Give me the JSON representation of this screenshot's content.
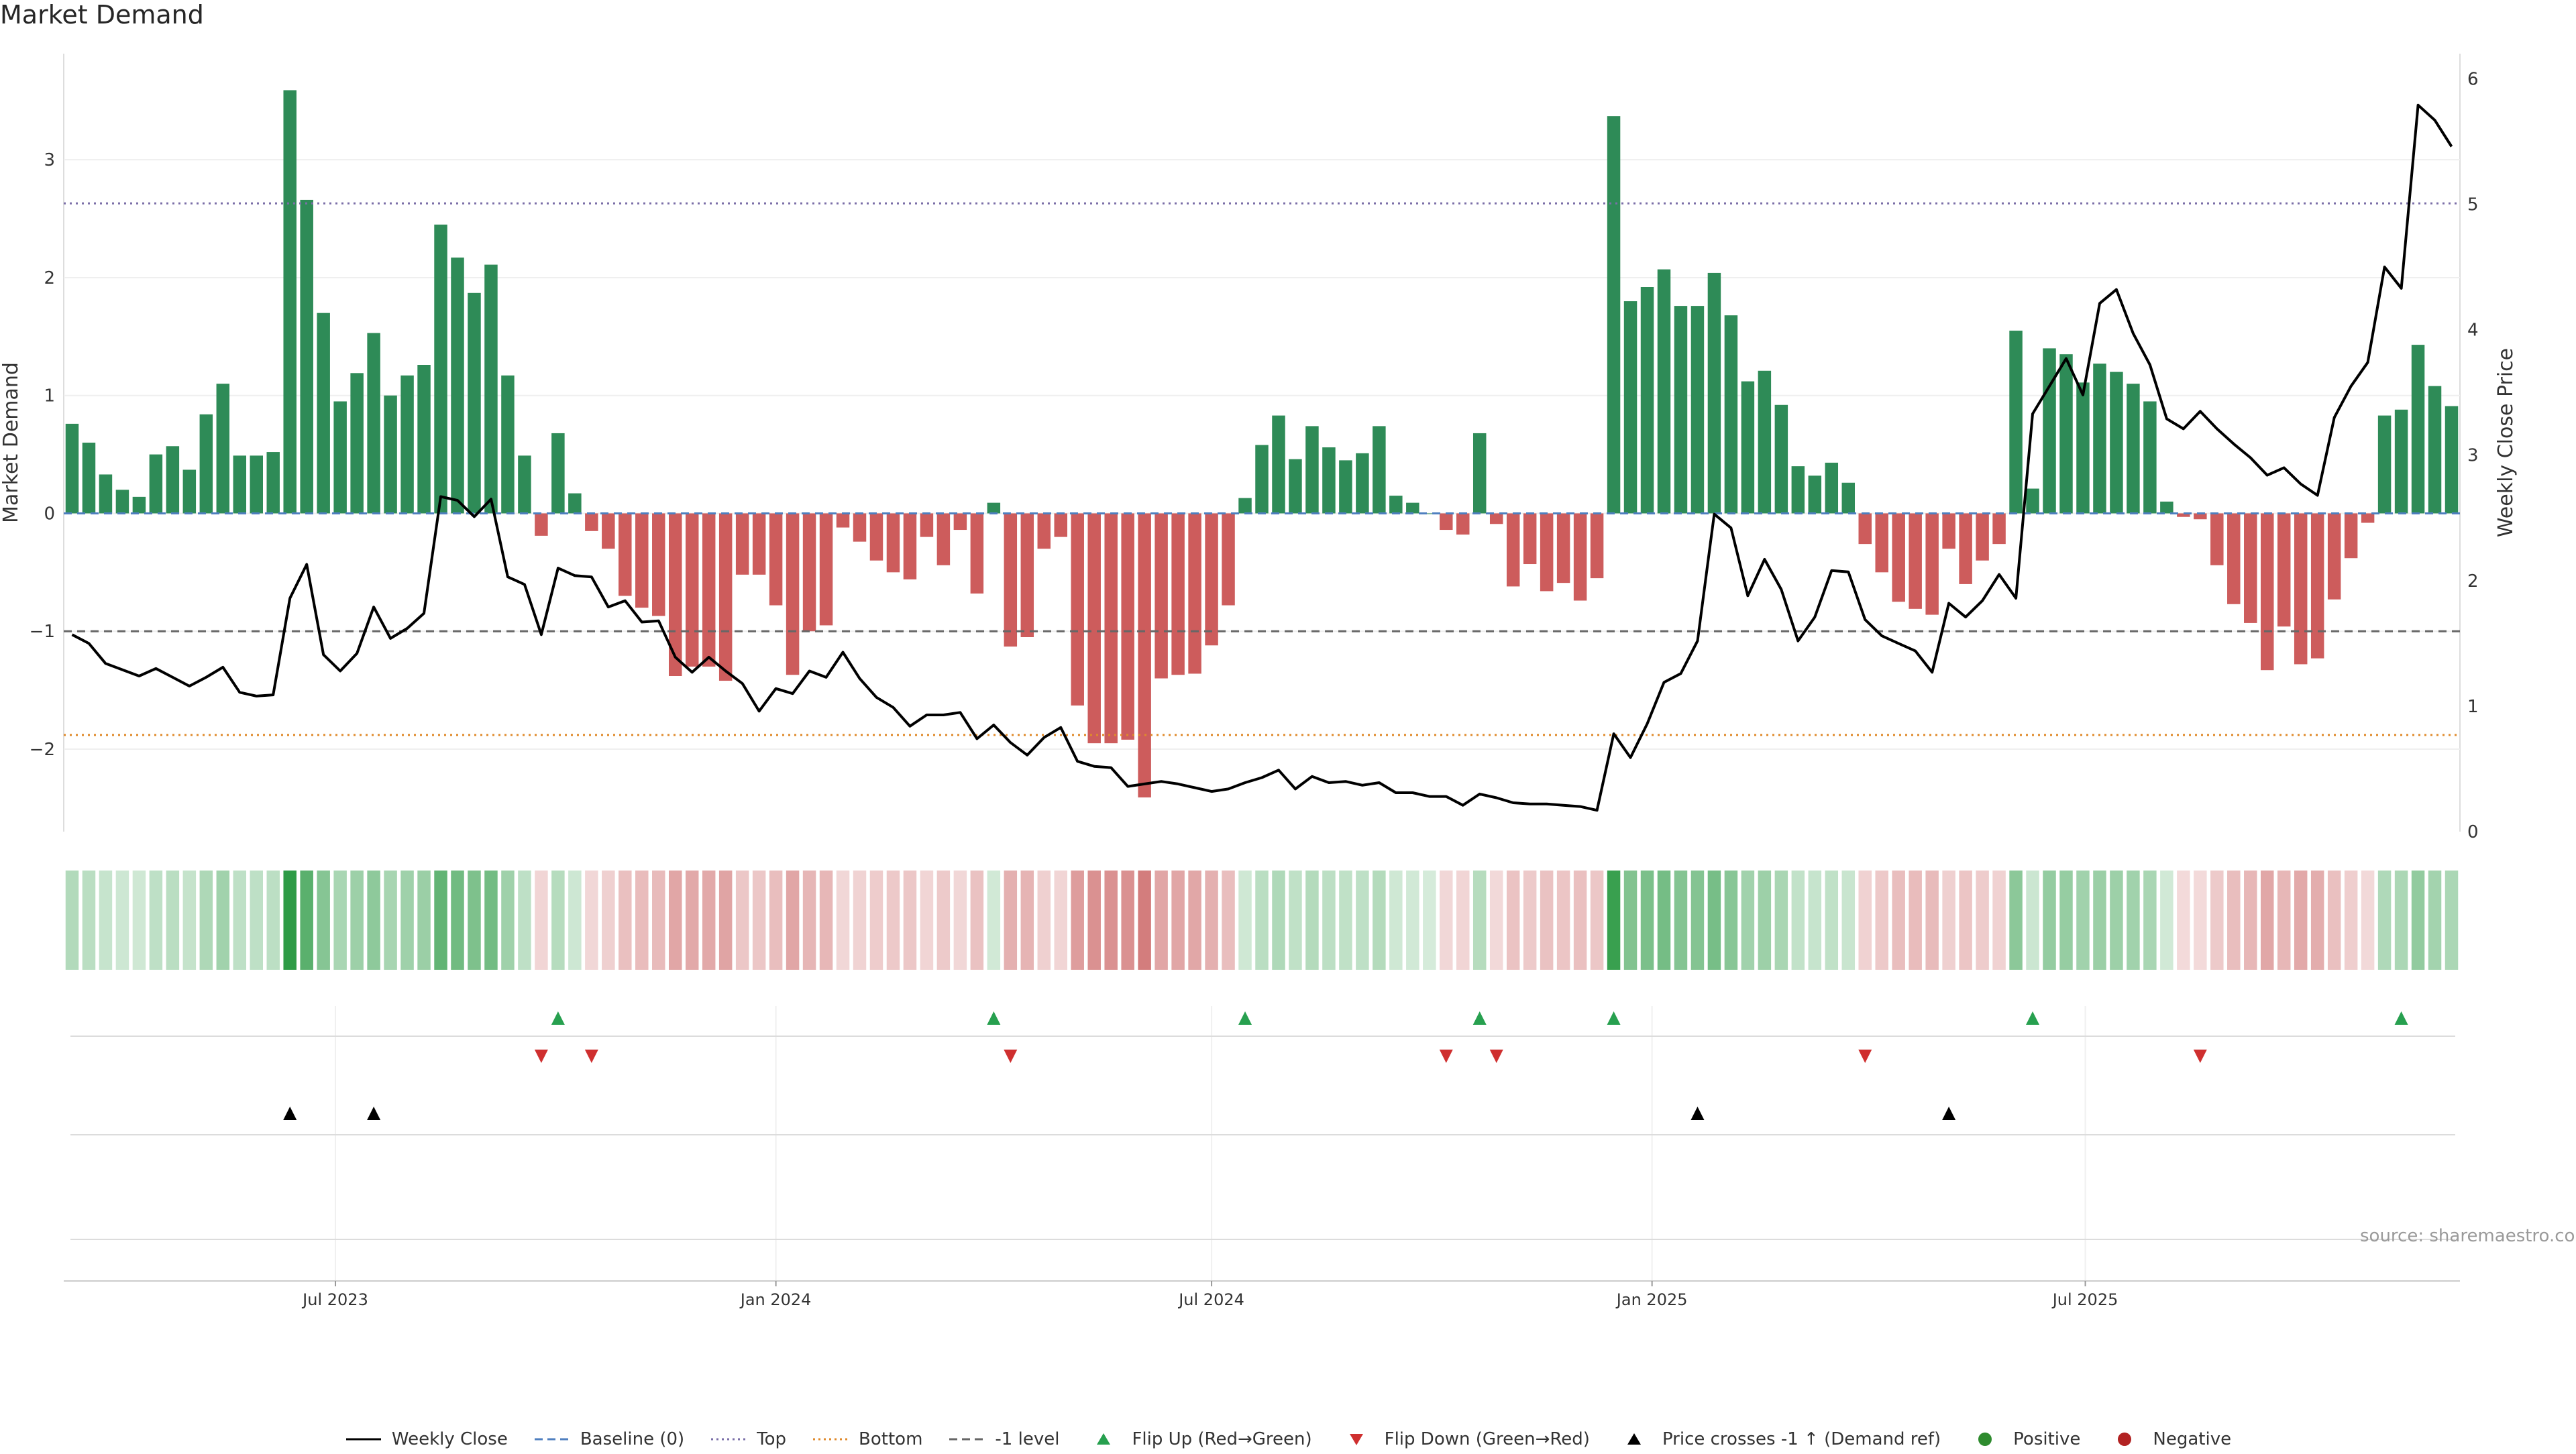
{
  "title": "Market Demand",
  "source": "source: sharemaestro.com",
  "chart_data": {
    "type": "bar",
    "title": "Market Demand",
    "ylabel_left": "Market Demand",
    "ylabel_right": "Weekly Close Price",
    "ylim_left": [
      -2.7,
      3.9
    ],
    "ylim_right": [
      0,
      6.2
    ],
    "yticks_left": [
      -2,
      -1,
      0,
      1,
      2,
      3
    ],
    "yticks_left_labels": [
      "−2",
      "−1",
      "0",
      "1",
      "2",
      "3"
    ],
    "yticks_right": [
      0,
      1,
      2,
      3,
      4,
      5,
      6
    ],
    "x_start_date": "2023-03-13",
    "x_step_days": 7,
    "x_ticks": [
      {
        "label": "Jul 2023",
        "date": "2023-07-01"
      },
      {
        "label": "Jan 2024",
        "date": "2024-01-01"
      },
      {
        "label": "Jul 2024",
        "date": "2024-07-01"
      },
      {
        "label": "Jan 2025",
        "date": "2025-01-01"
      },
      {
        "label": "Jul 2025",
        "date": "2025-07-01"
      }
    ],
    "reference_lines": [
      {
        "name": "Top",
        "value": 2.63,
        "color": "#7b6fa8",
        "style": "dotted"
      },
      {
        "name": "Bottom",
        "value": -1.88,
        "color": "#e08a2b",
        "style": "dotted"
      },
      {
        "name": "-1 level",
        "value": -1.0,
        "color": "#666666",
        "style": "dashed"
      },
      {
        "name": "Baseline (0)",
        "value": 0,
        "color": "#4f7fbf",
        "style": "dashed"
      }
    ],
    "demand": [
      0.76,
      0.6,
      0.33,
      0.2,
      0.14,
      0.5,
      0.57,
      0.37,
      0.84,
      1.1,
      0.49,
      0.49,
      0.52,
      3.59,
      2.66,
      1.7,
      0.95,
      1.19,
      1.53,
      1.0,
      1.17,
      1.26,
      2.45,
      2.17,
      1.87,
      2.11,
      1.17,
      0.49,
      -0.19,
      0.68,
      0.17,
      -0.15,
      -0.3,
      -0.7,
      -0.8,
      -0.87,
      -1.38,
      -1.3,
      -1.3,
      -1.42,
      -0.52,
      -0.52,
      -0.78,
      -1.37,
      -1.0,
      -0.95,
      -0.12,
      -0.24,
      -0.4,
      -0.5,
      -0.56,
      -0.2,
      -0.44,
      -0.14,
      -0.68,
      0.09,
      -1.13,
      -1.05,
      -0.3,
      -0.2,
      -1.63,
      -1.95,
      -1.95,
      -1.92,
      -2.41,
      -1.4,
      -1.37,
      -1.36,
      -1.12,
      -0.78,
      0.13,
      0.58,
      0.83,
      0.46,
      0.74,
      0.56,
      0.45,
      0.51,
      0.74,
      0.15,
      0.09,
      0.0,
      -0.14,
      -0.18,
      0.68,
      -0.09,
      -0.62,
      -0.43,
      -0.66,
      -0.59,
      -0.74,
      -0.55,
      3.37,
      1.8,
      1.92,
      2.07,
      1.76,
      1.76,
      2.04,
      1.68,
      1.12,
      1.21,
      0.92,
      0.4,
      0.32,
      0.43,
      0.26,
      -0.26,
      -0.5,
      -0.75,
      -0.81,
      -0.86,
      -0.3,
      -0.6,
      -0.4,
      -0.26,
      1.55,
      0.21,
      1.4,
      1.35,
      1.11,
      1.27,
      1.2,
      1.1,
      0.95,
      0.1,
      -0.03,
      -0.05,
      -0.44,
      -0.77,
      -0.93,
      -1.33,
      -0.96,
      -1.28,
      -1.23,
      -0.73,
      -0.38,
      -0.08,
      0.83,
      0.88,
      1.43,
      1.08,
      0.91
    ],
    "weekly_close": [
      1.57,
      1.5,
      1.34,
      1.29,
      1.24,
      1.3,
      1.23,
      1.16,
      1.23,
      1.31,
      1.11,
      1.08,
      1.09,
      1.86,
      2.13,
      1.41,
      1.28,
      1.42,
      1.79,
      1.54,
      1.62,
      1.74,
      2.67,
      2.64,
      2.51,
      2.65,
      2.03,
      1.97,
      1.57,
      2.1,
      2.04,
      2.03,
      1.79,
      1.84,
      1.67,
      1.68,
      1.39,
      1.27,
      1.39,
      1.28,
      1.18,
      0.96,
      1.14,
      1.1,
      1.28,
      1.23,
      1.43,
      1.22,
      1.07,
      0.99,
      0.84,
      0.93,
      0.93,
      0.95,
      0.74,
      0.85,
      0.71,
      0.61,
      0.75,
      0.83,
      0.56,
      0.52,
      0.51,
      0.36,
      0.38,
      0.4,
      0.38,
      0.35,
      0.32,
      0.34,
      0.39,
      0.43,
      0.49,
      0.34,
      0.44,
      0.39,
      0.4,
      0.37,
      0.39,
      0.31,
      0.31,
      0.28,
      0.28,
      0.21,
      0.3,
      0.27,
      0.23,
      0.22,
      0.22,
      0.21,
      0.2,
      0.17,
      0.78,
      0.59,
      0.86,
      1.19,
      1.26,
      1.52,
      2.53,
      2.42,
      1.88,
      2.17,
      1.93,
      1.52,
      1.71,
      2.08,
      2.07,
      1.69,
      1.56,
      1.5,
      1.44,
      1.27,
      1.82,
      1.71,
      1.84,
      2.05,
      1.86,
      3.33,
      3.55,
      3.77,
      3.48,
      4.21,
      4.32,
      3.97,
      3.72,
      3.29,
      3.21,
      3.35,
      3.21,
      3.09,
      2.98,
      2.84,
      2.9,
      2.77,
      2.68,
      3.3,
      3.55,
      3.74,
      4.5,
      4.33,
      5.79,
      5.67,
      5.46
    ],
    "flip_up_indices": [
      29,
      55,
      70,
      84,
      92,
      117,
      139
    ],
    "flip_down_indices": [
      28,
      31,
      56,
      82,
      85,
      107,
      127
    ],
    "price_cross_indices": [
      13,
      18,
      97,
      112
    ]
  },
  "legend": [
    {
      "label": "Weekly Close",
      "kind": "line",
      "color": "#000000"
    },
    {
      "label": "Baseline (0)",
      "kind": "dash",
      "color": "#4f7fbf"
    },
    {
      "label": "Top",
      "kind": "dot",
      "color": "#7b6fa8"
    },
    {
      "label": "Bottom",
      "kind": "dot",
      "color": "#e08a2b"
    },
    {
      "label": "-1 level",
      "kind": "dash",
      "color": "#666666"
    },
    {
      "label": "Flip Up (Red→Green)",
      "kind": "tri-up",
      "color": "#27a04f"
    },
    {
      "label": "Flip Down (Green→Red)",
      "kind": "tri-down",
      "color": "#cf2f2f"
    },
    {
      "label": "Price crosses -1 ↑ (Demand ref)",
      "kind": "tri-up",
      "color": "#000000"
    },
    {
      "label": "Positive",
      "kind": "circle",
      "color": "#2e8b2e"
    },
    {
      "label": "Negative",
      "kind": "circle",
      "color": "#b22222"
    }
  ],
  "colors": {
    "positive_bar": "#2e8b57",
    "negative_bar": "#cd5c5c",
    "price_line": "#000000"
  }
}
